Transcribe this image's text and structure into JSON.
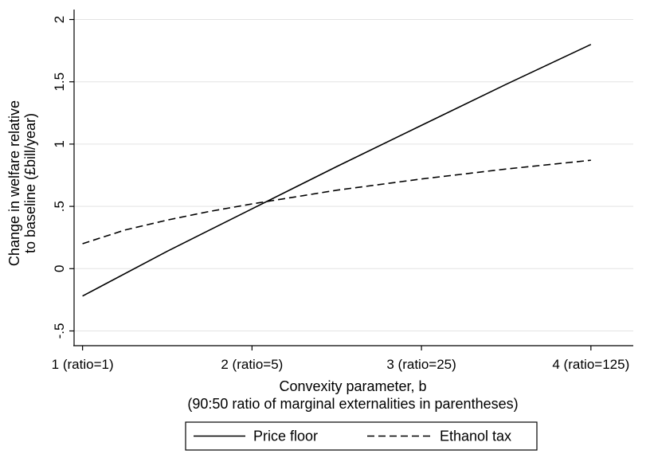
{
  "chart_data": {
    "type": "line",
    "ylabel_lines": [
      "Change in welfare relative",
      "to baseline (£bill/year)"
    ],
    "xlabel_lines": [
      "Convexity parameter, b",
      "(90:50 ratio of marginal externalities in parentheses)"
    ],
    "x_ticks": [
      {
        "value": 1,
        "label": "1 (ratio=1)"
      },
      {
        "value": 2,
        "label": "2 (ratio=5)"
      },
      {
        "value": 3,
        "label": "3 (ratio=25)"
      },
      {
        "value": 4,
        "label": "4 (ratio=125)"
      }
    ],
    "y_ticks": [
      {
        "value": -0.5,
        "label": "-.5"
      },
      {
        "value": 0,
        "label": "0"
      },
      {
        "value": 0.5,
        "label": ".5"
      },
      {
        "value": 1,
        "label": "1"
      },
      {
        "value": 1.5,
        "label": "1.5"
      },
      {
        "value": 2,
        "label": "2"
      }
    ],
    "xlim": [
      0.95,
      4.25
    ],
    "ylim": [
      -0.58,
      2.08
    ],
    "grid": "horizontal",
    "legend_position": "bottom",
    "series": [
      {
        "name": "Price floor",
        "style": "solid",
        "color": "#000000",
        "x": [
          1,
          1.5,
          2,
          2.5,
          3,
          3.5,
          4
        ],
        "y": [
          -0.22,
          0.14,
          0.48,
          0.82,
          1.15,
          1.48,
          1.8
        ]
      },
      {
        "name": "Ethanol tax",
        "style": "dashed",
        "color": "#000000",
        "x": [
          1,
          1.25,
          1.5,
          1.75,
          2,
          2.5,
          3,
          3.5,
          4
        ],
        "y": [
          0.2,
          0.31,
          0.39,
          0.46,
          0.52,
          0.63,
          0.72,
          0.8,
          0.87
        ]
      }
    ]
  }
}
